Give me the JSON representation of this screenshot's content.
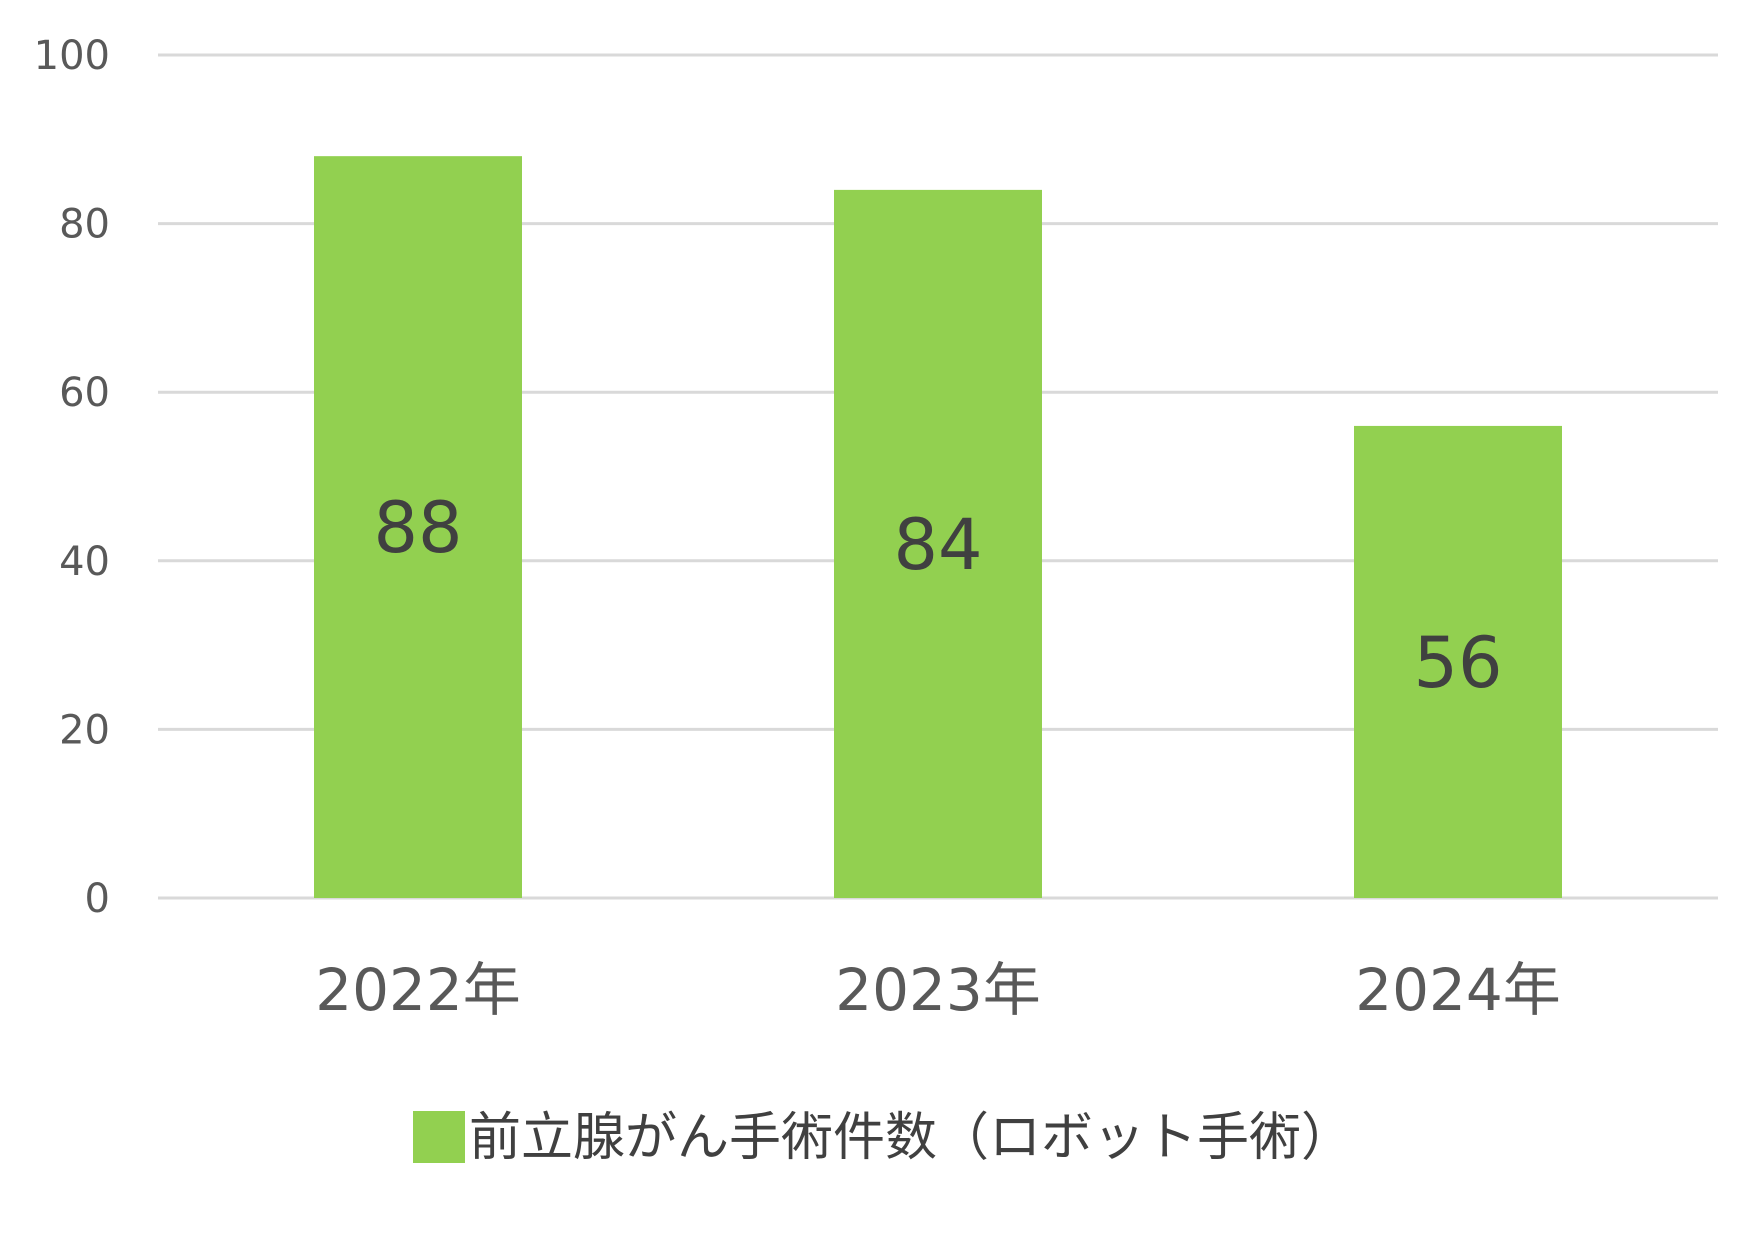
{
  "chart_data": {
    "type": "bar",
    "categories": [
      "2022年",
      "2023年",
      "2024年"
    ],
    "series": [
      {
        "name": "前立腺がん手術件数（ロボット手術）",
        "values": [
          88,
          84,
          56
        ],
        "color": "#92d050"
      }
    ],
    "data_labels": [
      "88",
      "84",
      "56"
    ],
    "ylim": [
      0,
      100
    ],
    "y_ticks": [
      0,
      20,
      40,
      60,
      80,
      100
    ],
    "y_tick_labels": [
      "0",
      "20",
      "40",
      "60",
      "80",
      "100"
    ],
    "grid": true,
    "legend_position": "bottom",
    "title": "",
    "xlabel": "",
    "ylabel": ""
  }
}
